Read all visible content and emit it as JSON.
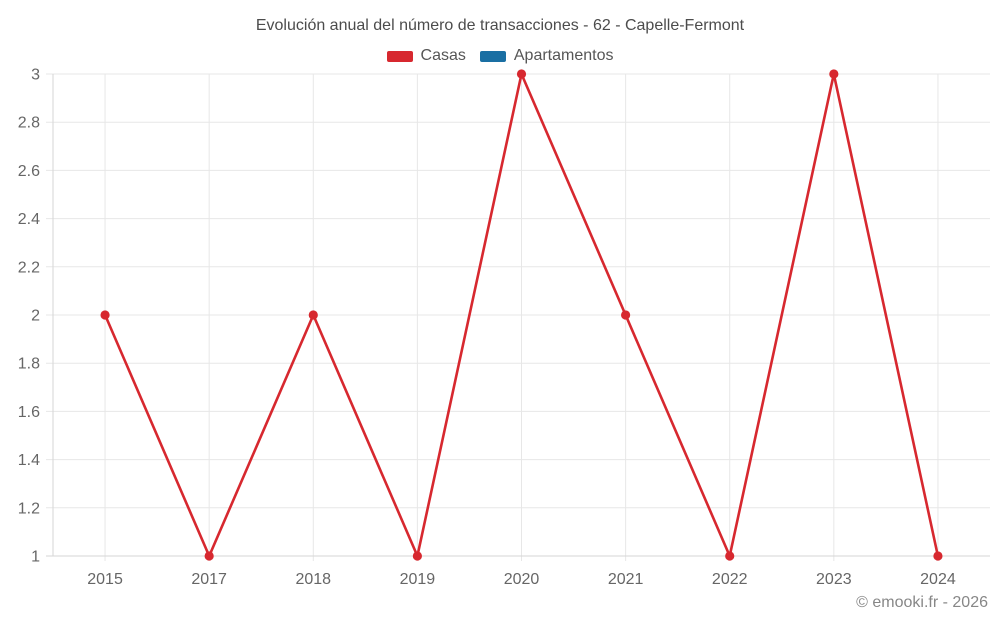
{
  "header": {
    "title": "Evolución anual del número de transacciones - 62 - Capelle-Fermont"
  },
  "legend": {
    "position": "top",
    "items": [
      {
        "label": "Casas",
        "color": "#d7282f"
      },
      {
        "label": "Apartamentos",
        "color": "#1a6fa3"
      }
    ]
  },
  "footer": {
    "text": "© emooki.fr - 2026"
  },
  "colors": {
    "casas": "#d7282f",
    "apartamentos": "#1a6fa3",
    "gridline": "#e7e7e7",
    "axis_line": "#d6d6d6",
    "tick_label": "#666666",
    "title_text": "#4c4c4c",
    "footer_text": "#878787",
    "background": "#ffffff"
  },
  "chart_data": {
    "type": "line",
    "title": "Evolución anual del número de transacciones - 62 - Capelle-Fermont",
    "categories": [
      "2015",
      "2017",
      "2018",
      "2019",
      "2020",
      "2021",
      "2022",
      "2023",
      "2024"
    ],
    "series": [
      {
        "name": "Casas",
        "color": "#d7282f",
        "values": [
          2,
          1,
          2,
          1,
          3,
          2,
          1,
          3,
          1
        ]
      },
      {
        "name": "Apartamentos",
        "color": "#1a6fa3",
        "values": []
      }
    ],
    "xlabel": "",
    "ylabel": "",
    "ylim": [
      1,
      3
    ],
    "ytick_step": 0.2,
    "ytick_labels": [
      "1",
      "1.2",
      "1.4",
      "1.6",
      "1.8",
      "2",
      "2.2",
      "2.4",
      "2.6",
      "2.8",
      "3"
    ],
    "grid": true,
    "legend_position": "top",
    "marker": "circle",
    "footer": "© emooki.fr - 2026"
  }
}
